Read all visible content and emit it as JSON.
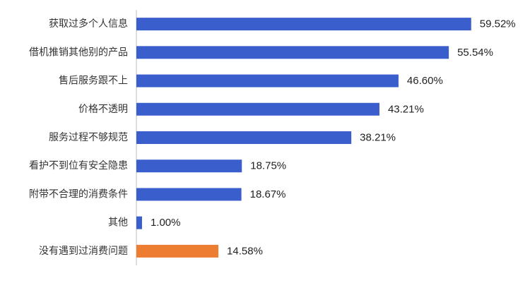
{
  "chart_data": {
    "type": "bar",
    "orientation": "horizontal",
    "categories": [
      "获取过多个人信息",
      "借机推销其他别的产品",
      "售后服务跟不上",
      "价格不透明",
      "服务过程不够规范",
      "看护不到位有安全隐患",
      "附带不合理的消费条件",
      "其他",
      "没有遇到过消费问题"
    ],
    "values": [
      59.52,
      55.54,
      46.6,
      43.21,
      38.21,
      18.75,
      18.67,
      1.0,
      14.58
    ],
    "value_labels": [
      "59.52%",
      "55.54%",
      "46.60%",
      "43.21%",
      "38.21%",
      "18.75%",
      "18.67%",
      "1.00%",
      "14.58%"
    ],
    "bar_colors": [
      "#3a5fcd",
      "#3a5fcd",
      "#3a5fcd",
      "#3a5fcd",
      "#3a5fcd",
      "#3a5fcd",
      "#3a5fcd",
      "#3a5fcd",
      "#ed7d31"
    ],
    "xlim": [
      0,
      60
    ],
    "grid": false,
    "legend": "none",
    "title": "",
    "xlabel": "",
    "ylabel": ""
  }
}
